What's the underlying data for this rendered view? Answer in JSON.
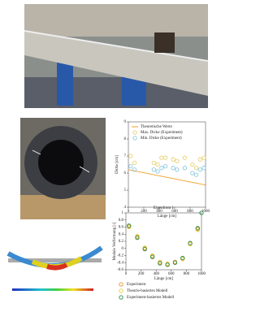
{
  "chart_data": [
    {
      "type": "scatter",
      "legend": "upper right",
      "ylabel": "Dicke [cm]",
      "xlabel": "Länge [cm]",
      "xlim": [
        0,
        1000
      ],
      "xticks": [
        0,
        200,
        400,
        600,
        800,
        1000
      ],
      "ylim": [
        4,
        9
      ],
      "yticks": [
        4,
        5,
        6,
        7,
        8,
        9
      ],
      "series": [
        {
          "name": "Theoretische Werte",
          "color": "#f0a020",
          "style": "line",
          "x": [
            0,
            1000
          ],
          "values": [
            6.2,
            5.3
          ]
        },
        {
          "name": "Max. Dicke (Experiment)",
          "color": "#e8d070",
          "style": "marker",
          "x": [
            30,
            80,
            330,
            380,
            430,
            480,
            580,
            630,
            730,
            830,
            880,
            930,
            980
          ],
          "values": [
            7.0,
            6.6,
            6.6,
            6.5,
            6.9,
            6.9,
            6.8,
            6.7,
            6.9,
            6.5,
            6.3,
            6.8,
            6.9
          ]
        },
        {
          "name": "Min. Dicke (Experiment)",
          "color": "#8cc8e0",
          "style": "marker",
          "x": [
            30,
            80,
            330,
            380,
            430,
            480,
            580,
            630,
            730,
            830,
            880,
            930,
            980
          ],
          "values": [
            6.4,
            6.2,
            6.2,
            6.1,
            6.3,
            6.4,
            6.3,
            6.2,
            6.3,
            6.0,
            5.9,
            6.2,
            6.3
          ]
        }
      ]
    },
    {
      "type": "scatter",
      "title": "Eigenform 1",
      "legend": "below",
      "ylabel": "Modale Verformung [-]",
      "xlabel": "Länge [cm]",
      "xlim": [
        0,
        1000
      ],
      "xticks": [
        0,
        200,
        400,
        600,
        800,
        1000
      ],
      "ylim": [
        -0.6,
        1
      ],
      "yticks": [
        -0.6,
        -0.4,
        -0.2,
        0,
        0.2,
        0.4,
        0.6,
        0.8,
        1
      ],
      "series": [
        {
          "name": "Experiment",
          "color": "#e89030",
          "style": "marker",
          "x": [
            40,
            150,
            250,
            350,
            450,
            550,
            650,
            750,
            850,
            950
          ],
          "values": [
            0.62,
            0.32,
            0.0,
            -0.22,
            -0.4,
            -0.45,
            -0.38,
            -0.28,
            0.14,
            0.55
          ]
        },
        {
          "name": "Theorie-basiertes Modell",
          "color": "#e8d040",
          "style": "marker",
          "x": [
            40,
            150,
            250,
            350,
            450,
            550,
            650,
            750,
            850,
            950
          ],
          "values": [
            0.6,
            0.35,
            0.02,
            -0.2,
            -0.38,
            -0.43,
            -0.4,
            -0.3,
            0.12,
            0.52
          ]
        },
        {
          "name": "Experiment-basiertes Modell",
          "color": "#2a8a4a",
          "style": "marker",
          "x": [
            40,
            150,
            250,
            350,
            450,
            550,
            650,
            750,
            850,
            950,
            1000
          ],
          "values": [
            0.64,
            0.3,
            -0.02,
            -0.24,
            -0.42,
            -0.46,
            -0.4,
            -0.27,
            0.15,
            0.57,
            1.0
          ]
        }
      ]
    }
  ]
}
